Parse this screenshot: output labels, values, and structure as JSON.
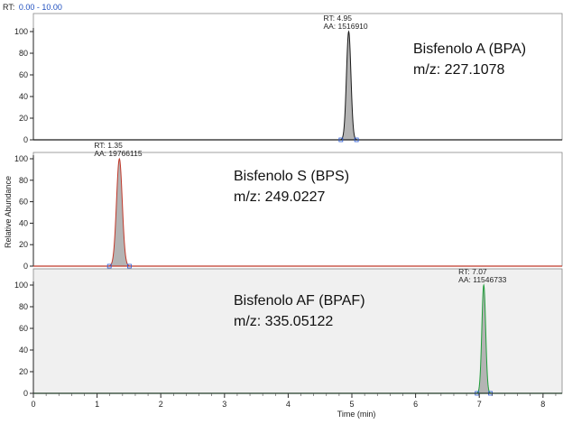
{
  "header": {
    "rt_prefix": "RT:",
    "rt_range": "0.00 - 10.00"
  },
  "ylabel": "Relative Abundance",
  "xlabel": "Time (min)",
  "chart_data": {
    "type": "line",
    "xlim": [
      0,
      8.3
    ],
    "x_ticks": [
      0,
      1,
      2,
      3,
      4,
      5,
      6,
      7,
      8
    ],
    "y_ticks": [
      0,
      20,
      40,
      60,
      80,
      100
    ],
    "grid": false,
    "panels": [
      {
        "compound_label": "Bisfenolo A (BPA)",
        "mz_label": "m/z: 227.1078",
        "rt_annotation": "RT: 4.95",
        "aa_annotation": "AA: 1516910",
        "trace_color": "#1a1a1a",
        "fill_color": "#b4b4b4",
        "ylim": [
          0,
          100
        ],
        "peak": {
          "rt": 4.95,
          "height": 100,
          "width": 0.035
        }
      },
      {
        "compound_label": "Bisfenolo S (BPS)",
        "mz_label": "m/z: 249.0227",
        "rt_annotation": "RT: 1.35",
        "aa_annotation": "AA: 19766115",
        "trace_color": "#c0392b",
        "fill_color": "#b4b4b4",
        "ylim": [
          0,
          100
        ],
        "peak": {
          "rt": 1.35,
          "height": 100,
          "width": 0.045
        }
      },
      {
        "compound_label": "Bisfenolo AF (BPAF)",
        "mz_label": "m/z: 335.05122",
        "rt_annotation": "RT: 7.07",
        "aa_annotation": "AA: 11546733",
        "trace_color": "#1f9e3a",
        "fill_color": "#b4b4b4",
        "ylim": [
          0,
          100
        ],
        "peak": {
          "rt": 7.07,
          "height": 100,
          "width": 0.03
        }
      }
    ]
  }
}
